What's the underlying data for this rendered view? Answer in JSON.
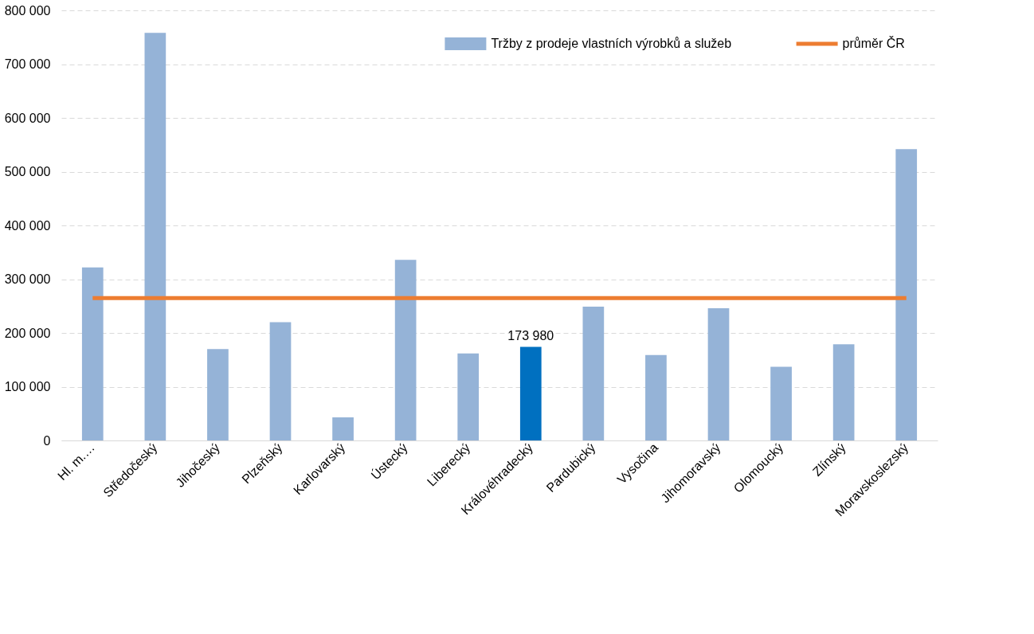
{
  "chart_data": {
    "type": "bar",
    "categories": [
      "Hl. m.…",
      "Středočeský",
      "Jihočeský",
      "Plzeňský",
      "Karlovarský",
      "Ústecký",
      "Liberecký",
      "Královéhradecký",
      "Pardubický",
      "Vysočina",
      "Jihomoravský",
      "Olomoucký",
      "Zlínský",
      "Moravskoslezský"
    ],
    "series": [
      {
        "name": "Tržby z prodeje vlastních výrobků a služeb",
        "color": "#95b3d7",
        "colors": [
          "#95b3d7",
          "#95b3d7",
          "#95b3d7",
          "#95b3d7",
          "#95b3d7",
          "#95b3d7",
          "#95b3d7",
          "#0070c0",
          "#95b3d7",
          "#95b3d7",
          "#95b3d7",
          "#95b3d7",
          "#95b3d7",
          "#95b3d7"
        ],
        "values": [
          322000,
          758000,
          170000,
          220000,
          43000,
          336000,
          162000,
          173980,
          249000,
          159000,
          246000,
          137000,
          179000,
          542000
        ],
        "value_labels": [
          null,
          null,
          null,
          null,
          null,
          null,
          null,
          "173 980",
          null,
          null,
          null,
          null,
          null,
          null
        ]
      },
      {
        "name": "průměr ČR",
        "type": "line",
        "color": "#ed7d31",
        "values": [
          265000,
          265000,
          265000,
          265000,
          265000,
          265000,
          265000,
          265000,
          265000,
          265000,
          265000,
          265000,
          265000,
          265000
        ]
      }
    ],
    "ylim": [
      0,
      800000
    ],
    "yticks": [
      {
        "value": 0,
        "label": "0"
      },
      {
        "value": 100000,
        "label": "100 000"
      },
      {
        "value": 200000,
        "label": "200 000"
      },
      {
        "value": 300000,
        "label": "300 000"
      },
      {
        "value": 400000,
        "label": "400 000"
      },
      {
        "value": 500000,
        "label": "500 000"
      },
      {
        "value": 600000,
        "label": "600 000"
      },
      {
        "value": 700000,
        "label": "700 000"
      },
      {
        "value": 800000,
        "label": "800 000"
      }
    ],
    "grid": "y",
    "legend": "top right",
    "marker": "none",
    "line_style": "solid"
  }
}
